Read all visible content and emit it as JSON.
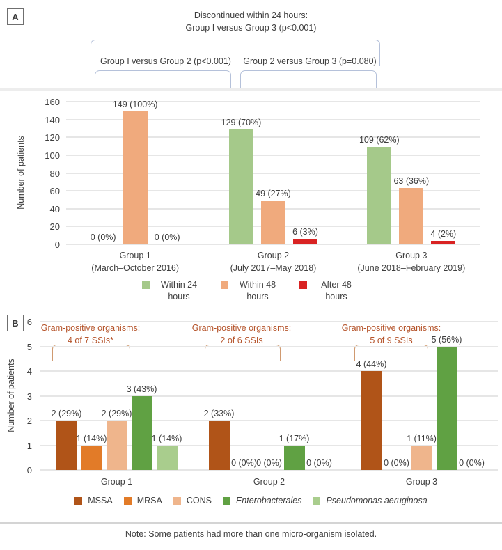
{
  "page": {
    "panel_a_label": "A",
    "panel_b_label": "B",
    "note": "Note: Some patients had more than one micro-organism isolated."
  },
  "colors": {
    "bracket_blue": "#b5c1da",
    "bracket_orange": "#d09a70",
    "annotation_text": "#b5532a",
    "gridline": "#e6e6e6",
    "text": "#3e3e3e"
  },
  "chart_data": [
    {
      "panel": "A",
      "type": "bar",
      "title_lines": [
        "Discontinued within 24 hours:",
        "Group I versus Group 3 (p<0.001)"
      ],
      "comparisons": {
        "left": "Group I versus Group 2 (p<0.001)",
        "right": "Group 2 versus Group 3 (p=0.080)"
      },
      "ylabel": "Number of patients",
      "ylim": [
        0,
        160
      ],
      "yticks": [
        0,
        20,
        40,
        60,
        80,
        100,
        120,
        140,
        160
      ],
      "grid": true,
      "legend_position": "bottom",
      "categories": [
        [
          "Group 1",
          "(March–October 2016)"
        ],
        [
          "Group 2",
          "(July 2017–May 2018)"
        ],
        [
          "Group 3",
          "(June 2018–February 2019)"
        ]
      ],
      "series": [
        {
          "name": "Within 24 hours",
          "color": "#a5c98a",
          "values": [
            0,
            129,
            109
          ],
          "labels": [
            "0 (0%)",
            "129 (70%)",
            "109 (62%)"
          ]
        },
        {
          "name": "Within 48 hours",
          "color": "#f0aa7d",
          "values": [
            149,
            49,
            63
          ],
          "labels": [
            "149 (100%)",
            "49 (27%)",
            "63 (36%)"
          ]
        },
        {
          "name": "After 48 hours",
          "color": "#d92323",
          "values": [
            0,
            6,
            4
          ],
          "labels": [
            "0 (0%)",
            "6 (3%)",
            "4 (2%)"
          ]
        }
      ]
    },
    {
      "panel": "B",
      "type": "bar",
      "ylabel": "Number of patients",
      "ylim": [
        0,
        6
      ],
      "yticks": [
        0,
        1,
        2,
        3,
        4,
        5,
        6
      ],
      "grid": true,
      "legend_position": "bottom",
      "categories": [
        [
          "Group 1"
        ],
        [
          "Group 2"
        ],
        [
          "Group 3"
        ]
      ],
      "series": [
        {
          "name": "MSSA",
          "color": "#b05418",
          "italic": false,
          "values": [
            2,
            2,
            4
          ],
          "labels": [
            "2 (29%)",
            "2 (33%)",
            "4 (44%)"
          ]
        },
        {
          "name": "MRSA",
          "color": "#e27b28",
          "italic": false,
          "values": [
            1,
            0,
            0
          ],
          "labels": [
            "1 (14%)",
            "0 (0%)",
            "0 (0%)"
          ]
        },
        {
          "name": "CONS",
          "color": "#efb58c",
          "italic": false,
          "values": [
            2,
            0,
            1
          ],
          "labels": [
            "2 (29%)",
            "0 (0%)",
            "1 (11%)"
          ]
        },
        {
          "name": "Enterobacterales",
          "color": "#60a143",
          "italic": true,
          "values": [
            3,
            1,
            5
          ],
          "labels": [
            "3 (43%)",
            "1 (17%)",
            "5 (56%)"
          ]
        },
        {
          "name": "Pseudomonas aeruginosa",
          "color": "#a9cd8d",
          "italic": true,
          "values": [
            1,
            0,
            0
          ],
          "labels": [
            "1 (14%)",
            "0 (0%)",
            "0 (0%)"
          ]
        }
      ],
      "annotations": [
        {
          "line1": "Gram-positive organisms:",
          "line2": "4 of 7 SSIs*"
        },
        {
          "line1": "Gram-positive organisms:",
          "line2": "2 of 6 SSIs"
        },
        {
          "line1": "Gram-positive organisms:",
          "line2": "5 of 9 SSIs"
        }
      ]
    }
  ]
}
